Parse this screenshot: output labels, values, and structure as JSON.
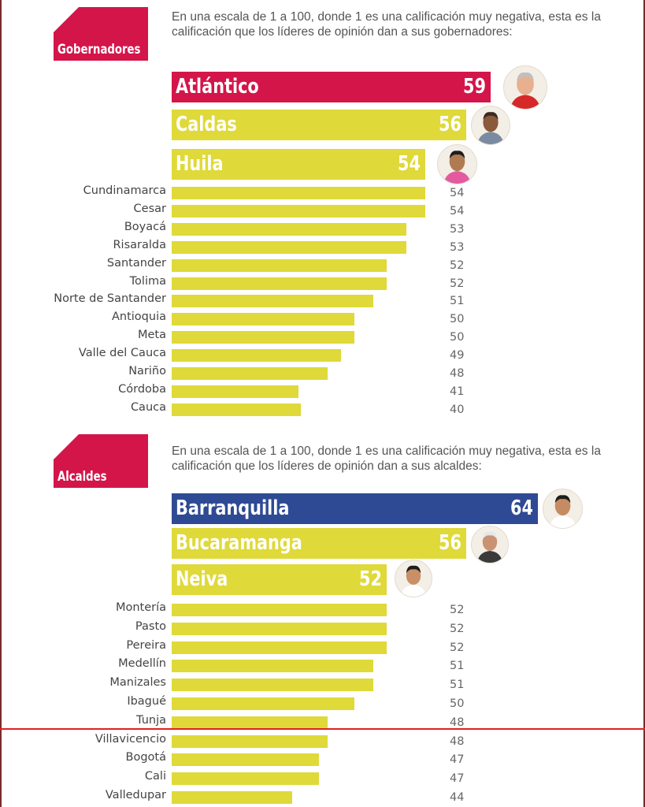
{
  "colors": {
    "tag_red": "#d4154a",
    "bar_yellow": "#dfd93a",
    "highlight_gov": "#d4154a",
    "highlight_mayor": "#2e4a94"
  },
  "gobernadores": {
    "tag": "Gobernadores",
    "intro": "En una escala de 1 a 100, donde 1 es una calificación muy negativa, esta es la calificación que los líderes de opinión dan a sus gobernadores:"
  },
  "alcaldes": {
    "tag": "Alcaldes",
    "intro": "En una escala de 1 a 100, donde 1 es una calificación muy negativa, esta es la calificación que los líderes de opinión dan a sus alcaldes:"
  },
  "chart_data": [
    {
      "type": "bar",
      "title": "Gobernadores",
      "scale": [
        1,
        100
      ],
      "top": [
        {
          "label": "Atlántico",
          "value": 59,
          "color": "#d4154a"
        },
        {
          "label": "Caldas",
          "value": 56,
          "color": "#dfd93a"
        },
        {
          "label": "Huila",
          "value": 54,
          "color": "#dfd93a"
        }
      ],
      "categories": [
        "Cundinamarca",
        "Cesar",
        "Boyacá",
        "Risaralda",
        "Santander",
        "Tolima",
        "Norte de Santander",
        "Antioquia",
        "Meta",
        "Valle del Cauca",
        "Nariño",
        "Córdoba",
        "Cauca"
      ],
      "values": [
        54,
        54,
        53,
        53,
        52,
        52,
        51,
        50,
        50,
        49,
        48,
        41,
        40
      ]
    },
    {
      "type": "bar",
      "title": "Alcaldes",
      "scale": [
        1,
        100
      ],
      "top": [
        {
          "label": "Barranquilla",
          "value": 64,
          "color": "#2e4a94"
        },
        {
          "label": "Bucaramanga",
          "value": 56,
          "color": "#dfd93a"
        },
        {
          "label": "Neiva",
          "value": 52,
          "color": "#dfd93a"
        }
      ],
      "categories": [
        "Montería",
        "Pasto",
        "Pereira",
        "Medellín",
        "Manizales",
        "Ibagué",
        "Tunja",
        "Villavicencio",
        "Bogotá",
        "Cali",
        "Valledupar"
      ],
      "values": [
        52,
        52,
        52,
        51,
        51,
        50,
        48,
        48,
        47,
        47,
        44
      ]
    }
  ]
}
